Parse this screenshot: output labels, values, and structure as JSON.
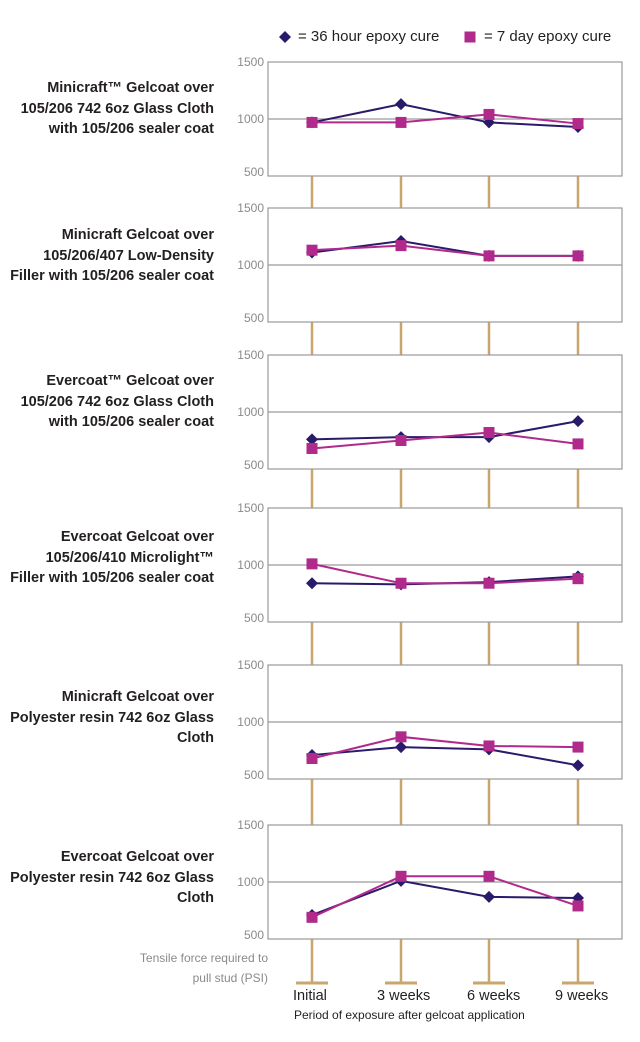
{
  "legend": [
    {
      "label": "= 36 hour epoxy cure",
      "color": "#2a1a6a",
      "marker": "diamond"
    },
    {
      "label": "= 7 day epoxy cure",
      "color": "#b02a8c",
      "marker": "square"
    }
  ],
  "y_axis_label": "Tensile force required to pull stud (PSI)",
  "x_axis_label": "Period of exposure after gelcoat application",
  "categories": [
    "Initial",
    "3 weeks",
    "6 weeks",
    "9 weeks"
  ],
  "chart_data": [
    {
      "type": "line",
      "title": "Minicraft™ Gelcoat over 105/206 742 6oz Glass Cloth with 105/206 sealer coat",
      "categories": [
        "Initial",
        "3 weeks",
        "6 weeks",
        "9 weeks"
      ],
      "ylim": [
        500,
        1500
      ],
      "yticks": [
        1500,
        1000,
        500
      ],
      "series": [
        {
          "name": "36 hour epoxy cure",
          "values": [
            970,
            1130,
            970,
            930
          ]
        },
        {
          "name": "7 day epoxy cure",
          "values": [
            970,
            970,
            1040,
            960
          ]
        }
      ]
    },
    {
      "type": "line",
      "title": "Minicraft Gelcoat over 105/206/407 Low-Density Filler with 105/206 sealer coat",
      "categories": [
        "Initial",
        "3 weeks",
        "6 weeks",
        "9 weeks"
      ],
      "ylim": [
        500,
        1500
      ],
      "yticks": [
        1500,
        1000,
        500
      ],
      "series": [
        {
          "name": "36 hour epoxy cure",
          "values": [
            1110,
            1210,
            1080,
            1080
          ]
        },
        {
          "name": "7 day epoxy cure",
          "values": [
            1130,
            1170,
            1080,
            1080
          ]
        }
      ]
    },
    {
      "type": "line",
      "title": "Evercoat™ Gelcoat over 105/206 742 6oz Glass Cloth with 105/206 sealer coat",
      "categories": [
        "Initial",
        "3 weeks",
        "6 weeks",
        "9 weeks"
      ],
      "ylim": [
        500,
        1500
      ],
      "yticks": [
        1500,
        1000,
        500
      ],
      "series": [
        {
          "name": "36 hour epoxy cure",
          "values": [
            760,
            780,
            780,
            920
          ]
        },
        {
          "name": "7 day epoxy cure",
          "values": [
            680,
            750,
            820,
            720
          ]
        }
      ]
    },
    {
      "type": "line",
      "title": "Evercoat Gelcoat over 105/206/410 Microlight™ Filler with 105/206 sealer coat",
      "categories": [
        "Initial",
        "3 weeks",
        "6 weeks",
        "9 weeks"
      ],
      "ylim": [
        500,
        1500
      ],
      "yticks": [
        1500,
        1000,
        500
      ],
      "series": [
        {
          "name": "36 hour epoxy cure",
          "values": [
            840,
            830,
            850,
            900
          ]
        },
        {
          "name": "7 day epoxy cure",
          "values": [
            1010,
            840,
            840,
            880
          ]
        }
      ]
    },
    {
      "type": "line",
      "title": "Minicraft Gelcoat over Polyester resin 742 6oz Glass Cloth",
      "categories": [
        "Initial",
        "3 weeks",
        "6 weeks",
        "9 weeks"
      ],
      "ylim": [
        500,
        1500
      ],
      "yticks": [
        1500,
        1000,
        500
      ],
      "series": [
        {
          "name": "36 hour epoxy cure",
          "values": [
            710,
            780,
            760,
            620
          ]
        },
        {
          "name": "7 day epoxy cure",
          "values": [
            680,
            870,
            790,
            780
          ]
        }
      ]
    },
    {
      "type": "line",
      "title": "Evercoat Gelcoat over Polyester resin 742 6oz Glass Cloth",
      "categories": [
        "Initial",
        "3 weeks",
        "6 weeks",
        "9 weeks"
      ],
      "ylim": [
        500,
        1500
      ],
      "yticks": [
        1500,
        1000,
        500
      ],
      "series": [
        {
          "name": "36 hour epoxy cure",
          "values": [
            710,
            1010,
            870,
            860
          ]
        },
        {
          "name": "7 day epoxy cure",
          "values": [
            690,
            1050,
            1050,
            790
          ]
        }
      ]
    }
  ]
}
